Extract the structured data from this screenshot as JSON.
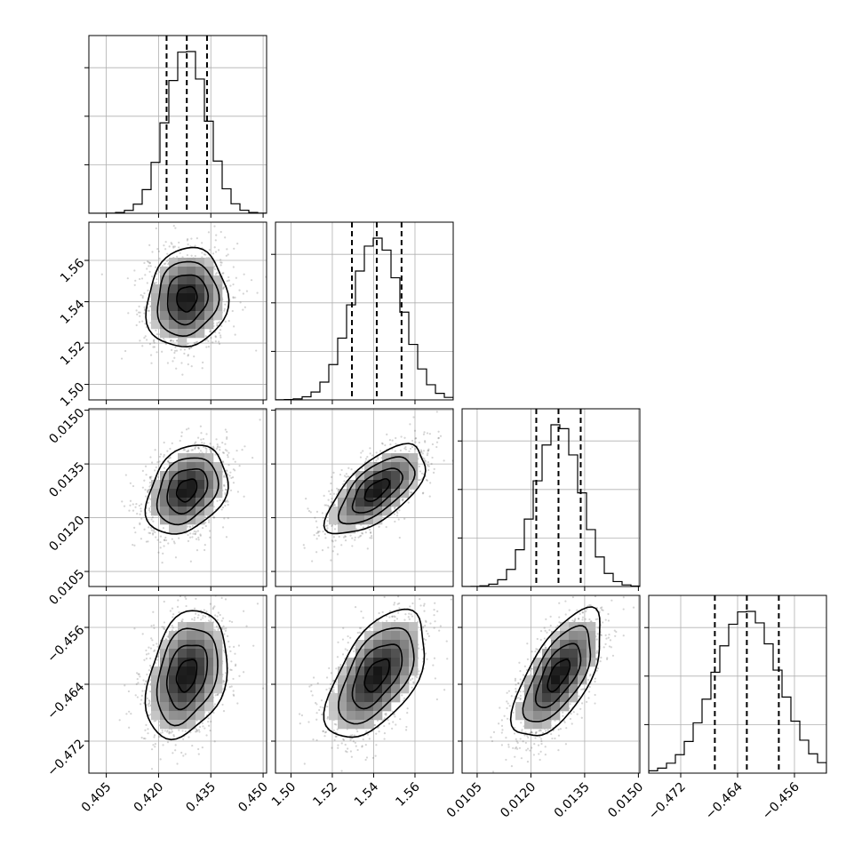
{
  "chart_data": {
    "type": "corner",
    "parameters": [
      {
        "index": 0,
        "median": 0.4281,
        "q16": 0.4223,
        "q84": 0.4339,
        "sigma": 0.0058,
        "range": [
          0.4,
          0.451
        ],
        "ticks": [
          0.405,
          0.42,
          0.435,
          0.45
        ],
        "tick_labels": [
          "0.405",
          "0.420",
          "0.435",
          "0.450"
        ]
      },
      {
        "index": 1,
        "median": 1.5415,
        "q16": 1.5295,
        "q84": 1.5535,
        "sigma": 0.012,
        "range": [
          1.4925,
          1.5785
        ],
        "ticks": [
          1.5,
          1.52,
          1.54,
          1.56
        ],
        "tick_labels": [
          "1.50",
          "1.52",
          "1.54",
          "1.56"
        ]
      },
      {
        "index": 2,
        "median": 0.01277,
        "q16": 0.01215,
        "q84": 0.01339,
        "sigma": 0.00062,
        "range": [
          0.01008,
          0.01504
        ],
        "ticks": [
          0.0105,
          0.012,
          0.0135,
          0.015
        ],
        "tick_labels": [
          "0.0105",
          "0.0120",
          "0.0135",
          "0.0150"
        ]
      },
      {
        "index": 3,
        "median": -0.4627,
        "q16": -0.4672,
        "q84": -0.4582,
        "sigma": 0.0045,
        "range": [
          -0.4765,
          -0.4515
        ],
        "ticks": [
          -0.472,
          -0.464,
          -0.456
        ],
        "tick_labels": [
          "−0.472",
          "−0.464",
          "−0.456"
        ]
      }
    ],
    "correlations": [
      {
        "pair": [
          0,
          1
        ],
        "rho": 0.1
      },
      {
        "pair": [
          0,
          2
        ],
        "rho": 0.3
      },
      {
        "pair": [
          1,
          2
        ],
        "rho": 0.65
      },
      {
        "pair": [
          0,
          3
        ],
        "rho": 0.3
      },
      {
        "pair": [
          1,
          3
        ],
        "rho": 0.55
      },
      {
        "pair": [
          2,
          3
        ],
        "rho": 0.65
      }
    ],
    "contour_levels_sigma": [
      0.5,
      1.0,
      1.5,
      2.0
    ],
    "hist_bins": 20,
    "grid": true,
    "colors": {
      "line": "#000000",
      "grid": "#b0b0b0",
      "scatter": "#555555"
    }
  }
}
